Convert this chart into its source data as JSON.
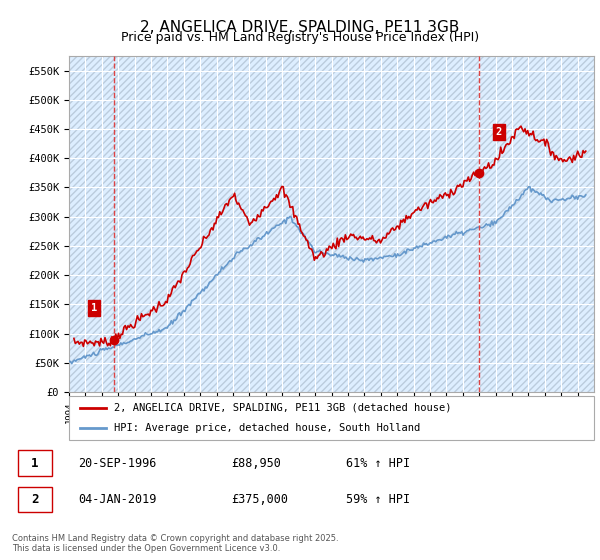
{
  "title": "2, ANGELICA DRIVE, SPALDING, PE11 3GB",
  "subtitle": "Price paid vs. HM Land Registry's House Price Index (HPI)",
  "ylim": [
    0,
    575000
  ],
  "yticks": [
    0,
    50000,
    100000,
    150000,
    200000,
    250000,
    300000,
    350000,
    400000,
    450000,
    500000,
    550000
  ],
  "ytick_labels": [
    "£0",
    "£50K",
    "£100K",
    "£150K",
    "£200K",
    "£250K",
    "£300K",
    "£350K",
    "£400K",
    "£450K",
    "£500K",
    "£550K"
  ],
  "sale1_date": 1996.72,
  "sale1_price": 88950,
  "sale1_label": "1",
  "sale2_date": 2019.01,
  "sale2_price": 375000,
  "sale2_label": "2",
  "legend_line1": "2, ANGELICA DRIVE, SPALDING, PE11 3GB (detached house)",
  "legend_line2": "HPI: Average price, detached house, South Holland",
  "copyright": "Contains HM Land Registry data © Crown copyright and database right 2025.\nThis data is licensed under the Open Government Licence v3.0.",
  "red_color": "#cc0000",
  "blue_color": "#6699cc",
  "bg_color": "#ddeeff",
  "grid_color": "#ffffff",
  "vline_color": "#dd4444"
}
